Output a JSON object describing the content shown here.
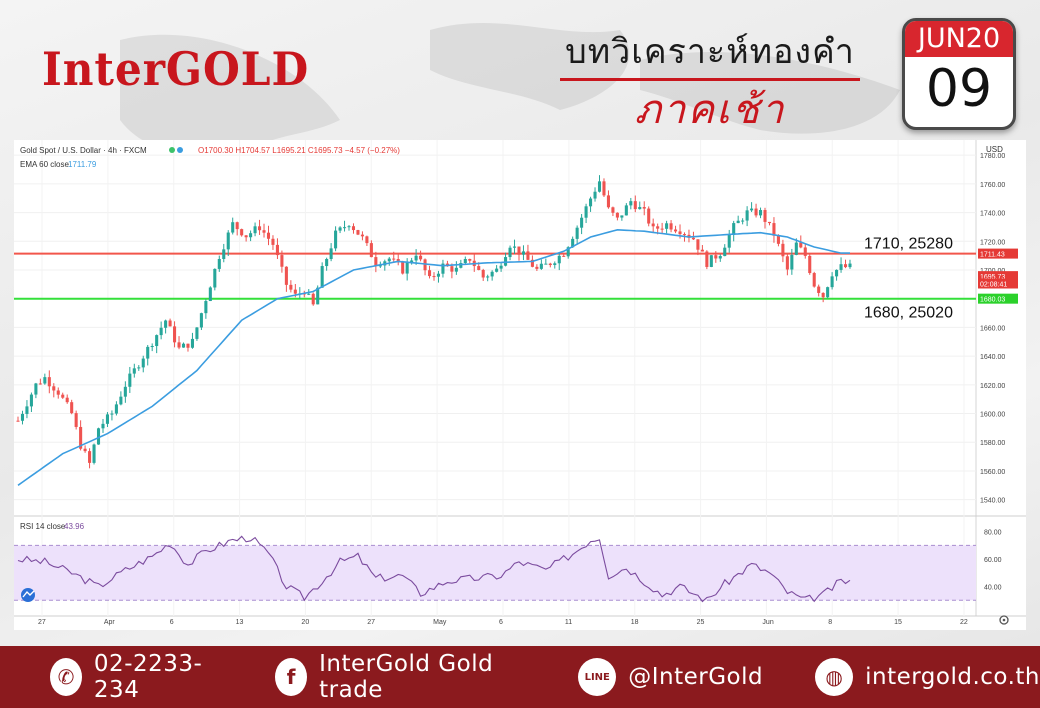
{
  "header": {
    "brand": "InterGOLD",
    "title": "บทวิเคราะห์ทองคำ",
    "subtitle": "ภาคเช้า",
    "calendar": {
      "month": "JUN20",
      "day": "09"
    }
  },
  "chart_data": {
    "type": "candlestick",
    "symbol_info": "Gold Spot / U.S. Dollar · 4h · FXCM",
    "ohlc_info": "O1700.30 H1704.57 L1695.21 C1695.73 −4.57 (−0.27%)",
    "ema_label": "EMA 60 close",
    "ema_value": "1711.79",
    "rsi_label": "RSI 14 close",
    "rsi_value": "43.96",
    "currency": "USD",
    "ylim": [
      1530,
      1785
    ],
    "y_ticks": [
      "1780.00",
      "1760.00",
      "1740.00",
      "1720.00",
      "1700.00",
      "1680.00",
      "1660.00",
      "1640.00",
      "1620.00",
      "1600.00",
      "1580.00",
      "1560.00",
      "1540.00"
    ],
    "rsi_ticks": [
      "80.00",
      "60.00",
      "40.00"
    ],
    "x_ticks": [
      "27",
      "Apr",
      "6",
      "13",
      "20",
      "27",
      "May",
      "6",
      "11",
      "18",
      "25",
      "Jun",
      "8",
      "15",
      "22"
    ],
    "price_tags": [
      {
        "value": 1711.43,
        "label": "1711.43",
        "color": "#e53935"
      },
      {
        "value": 1695.73,
        "label": "1695.73",
        "color": "#e53935"
      },
      {
        "value": 1690.6,
        "label": "02:08:41",
        "color": "#e53935"
      },
      {
        "value": 1680.03,
        "label": "1680.03",
        "color": "#2bd12b"
      }
    ],
    "levels": [
      {
        "value": 1711.4,
        "color": "#f2564b",
        "annotation": "1710, 25280"
      },
      {
        "value": 1680.0,
        "color": "#34e03a",
        "annotation": "1680, 25020"
      }
    ],
    "price_anchors": [
      [
        0,
        1595
      ],
      [
        4,
        1620
      ],
      [
        6,
        1625
      ],
      [
        9,
        1615
      ],
      [
        12,
        1600
      ],
      [
        14,
        1578
      ],
      [
        16,
        1565
      ],
      [
        18,
        1590
      ],
      [
        21,
        1600
      ],
      [
        24,
        1620
      ],
      [
        27,
        1635
      ],
      [
        30,
        1650
      ],
      [
        33,
        1665
      ],
      [
        36,
        1645
      ],
      [
        39,
        1650
      ],
      [
        42,
        1680
      ],
      [
        45,
        1710
      ],
      [
        48,
        1732
      ],
      [
        51,
        1724
      ],
      [
        54,
        1730
      ],
      [
        57,
        1718
      ],
      [
        60,
        1690
      ],
      [
        62,
        1682
      ],
      [
        64,
        1686
      ],
      [
        66,
        1675
      ],
      [
        68,
        1700
      ],
      [
        71,
        1725
      ],
      [
        74,
        1733
      ],
      [
        77,
        1722
      ],
      [
        80,
        1705
      ],
      [
        83,
        1708
      ],
      [
        86,
        1700
      ],
      [
        89,
        1712
      ],
      [
        92,
        1693
      ],
      [
        95,
        1703
      ],
      [
        98,
        1700
      ],
      [
        101,
        1708
      ],
      [
        104,
        1695
      ],
      [
        107,
        1700
      ],
      [
        110,
        1718
      ],
      [
        113,
        1710
      ],
      [
        116,
        1700
      ],
      [
        119,
        1705
      ],
      [
        122,
        1712
      ],
      [
        125,
        1730
      ],
      [
        128,
        1750
      ],
      [
        130,
        1762
      ],
      [
        132,
        1742
      ],
      [
        134,
        1735
      ],
      [
        137,
        1748
      ],
      [
        140,
        1740
      ],
      [
        142,
        1728
      ],
      [
        145,
        1732
      ],
      [
        148,
        1728
      ],
      [
        151,
        1722
      ],
      [
        154,
        1705
      ],
      [
        157,
        1712
      ],
      [
        160,
        1730
      ],
      [
        163,
        1740
      ],
      [
        166,
        1740
      ],
      [
        169,
        1725
      ],
      [
        172,
        1700
      ],
      [
        174,
        1718
      ],
      [
        176,
        1710
      ],
      [
        178,
        1690
      ],
      [
        180,
        1682
      ],
      [
        182,
        1698
      ],
      [
        184,
        1702
      ]
    ],
    "ema_anchors": [
      [
        0,
        1550
      ],
      [
        10,
        1572
      ],
      [
        20,
        1586
      ],
      [
        30,
        1605
      ],
      [
        40,
        1630
      ],
      [
        50,
        1665
      ],
      [
        58,
        1680
      ],
      [
        66,
        1685
      ],
      [
        75,
        1700
      ],
      [
        85,
        1706
      ],
      [
        95,
        1703
      ],
      [
        105,
        1705
      ],
      [
        115,
        1706
      ],
      [
        122,
        1713
      ],
      [
        128,
        1723
      ],
      [
        134,
        1728
      ],
      [
        140,
        1727
      ],
      [
        150,
        1723
      ],
      [
        160,
        1725
      ],
      [
        166,
        1726
      ],
      [
        172,
        1723
      ],
      [
        178,
        1716
      ],
      [
        184,
        1711.8
      ]
    ],
    "rsi_anchors": [
      [
        0,
        60
      ],
      [
        6,
        58
      ],
      [
        12,
        50
      ],
      [
        18,
        40
      ],
      [
        24,
        52
      ],
      [
        30,
        62
      ],
      [
        34,
        72
      ],
      [
        38,
        56
      ],
      [
        42,
        66
      ],
      [
        48,
        74
      ],
      [
        52,
        76
      ],
      [
        56,
        64
      ],
      [
        60,
        40
      ],
      [
        64,
        32
      ],
      [
        68,
        44
      ],
      [
        72,
        58
      ],
      [
        76,
        62
      ],
      [
        80,
        46
      ],
      [
        86,
        48
      ],
      [
        90,
        35
      ],
      [
        96,
        44
      ],
      [
        102,
        46
      ],
      [
        108,
        48
      ],
      [
        112,
        58
      ],
      [
        118,
        52
      ],
      [
        124,
        64
      ],
      [
        128,
        74
      ],
      [
        130,
        76
      ],
      [
        132,
        48
      ],
      [
        136,
        54
      ],
      [
        140,
        44
      ],
      [
        144,
        34
      ],
      [
        148,
        40
      ],
      [
        154,
        30
      ],
      [
        158,
        42
      ],
      [
        164,
        56
      ],
      [
        168,
        50
      ],
      [
        172,
        36
      ],
      [
        176,
        30
      ],
      [
        180,
        34
      ],
      [
        184,
        44
      ]
    ]
  },
  "footer": {
    "phone": "02-2233-234",
    "facebook": "InterGold Gold trade",
    "line": "@InterGold",
    "web": "intergold.co.th"
  }
}
